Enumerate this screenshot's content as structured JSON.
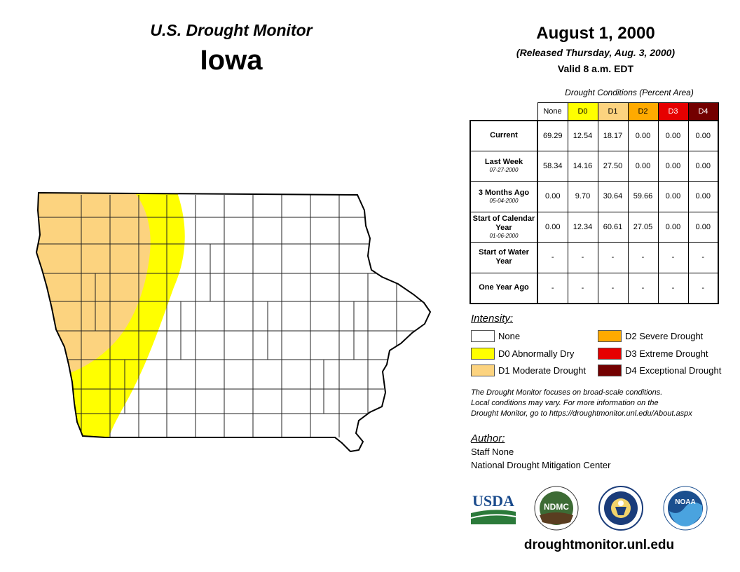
{
  "header": {
    "monitor_title": "U.S. Drought Monitor",
    "state": "Iowa",
    "date": "August 1, 2000",
    "released": "(Released Thursday, Aug. 3, 2000)",
    "valid": "Valid 8 a.m. EDT"
  },
  "conditions_table": {
    "caption": "Drought Conditions (Percent Area)",
    "columns": [
      {
        "label": "None",
        "color": "#ffffff"
      },
      {
        "label": "D0",
        "color": "#ffff00"
      },
      {
        "label": "D1",
        "color": "#fcd37f"
      },
      {
        "label": "D2",
        "color": "#ffaa00"
      },
      {
        "label": "D3",
        "color": "#e60000"
      },
      {
        "label": "D4",
        "color": "#730000"
      }
    ],
    "rows": [
      {
        "label": "Current",
        "sub": "",
        "values": [
          "69.29",
          "12.54",
          "18.17",
          "0.00",
          "0.00",
          "0.00"
        ]
      },
      {
        "label": "Last Week",
        "sub": "07-27-2000",
        "values": [
          "58.34",
          "14.16",
          "27.50",
          "0.00",
          "0.00",
          "0.00"
        ]
      },
      {
        "label": "3 Months Ago",
        "sub": "05-04-2000",
        "values": [
          "0.00",
          "9.70",
          "30.64",
          "59.66",
          "0.00",
          "0.00"
        ]
      },
      {
        "label": "Start of Calendar Year",
        "sub": "01-06-2000",
        "values": [
          "0.00",
          "12.34",
          "60.61",
          "27.05",
          "0.00",
          "0.00"
        ]
      },
      {
        "label": "Start of Water Year",
        "sub": "",
        "values": [
          "-",
          "-",
          "-",
          "-",
          "-",
          "-"
        ]
      },
      {
        "label": "One Year Ago",
        "sub": "",
        "values": [
          "-",
          "-",
          "-",
          "-",
          "-",
          "-"
        ]
      }
    ]
  },
  "legend": {
    "title": "Intensity:",
    "items": [
      {
        "label": "None",
        "color": "#ffffff"
      },
      {
        "label": "D0 Abnormally Dry",
        "color": "#ffff00"
      },
      {
        "label": "D1 Moderate Drought",
        "color": "#fcd37f"
      },
      {
        "label": "D2 Severe Drought",
        "color": "#ffaa00"
      },
      {
        "label": "D3 Extreme Drought",
        "color": "#e60000"
      },
      {
        "label": "D4 Exceptional Drought",
        "color": "#730000"
      }
    ]
  },
  "disclaimer": {
    "line1": "The Drought Monitor focuses on broad-scale conditions.",
    "line2": "Local conditions may vary. For more information on the",
    "line3": "Drought Monitor, go to https://droughtmonitor.unl.edu/About.aspx"
  },
  "author": {
    "title": "Author:",
    "name": "Staff None",
    "org": "National Drought Mitigation Center"
  },
  "logos": {
    "usda": "USDA",
    "ndmc": "NDMC",
    "noaa": "NOAA"
  },
  "footer": {
    "website": "droughtmonitor.unl.edu"
  }
}
